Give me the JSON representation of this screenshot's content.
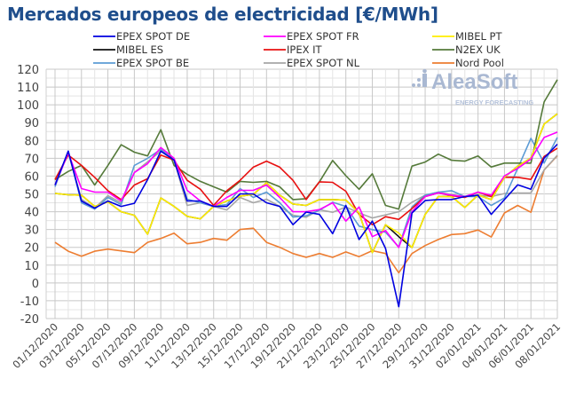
{
  "title": "Mercados europeos de electricidad [€/MWh]",
  "watermark": {
    "brand": "AleaSoft",
    "tagline": "ENERGY FORECASTING"
  },
  "chart_data": {
    "type": "line",
    "title": "Mercados europeos de electricidad [€/MWh]",
    "xlabel": "",
    "ylabel": "",
    "ylim": [
      -20,
      120
    ],
    "yticks": [
      -20,
      -10,
      0,
      10,
      20,
      30,
      40,
      50,
      60,
      70,
      80,
      90,
      100,
      110,
      120
    ],
    "grid": true,
    "legend_placement": "top",
    "x": [
      "01/12/2020",
      "02/12/2020",
      "03/12/2020",
      "04/12/2020",
      "05/12/2020",
      "06/12/2020",
      "07/12/2020",
      "08/12/2020",
      "09/12/2020",
      "10/12/2020",
      "11/12/2020",
      "12/12/2020",
      "13/12/2020",
      "14/12/2020",
      "15/12/2020",
      "16/12/2020",
      "17/12/2020",
      "18/12/2020",
      "19/12/2020",
      "20/12/2020",
      "21/12/2020",
      "22/12/2020",
      "23/12/2020",
      "24/12/2020",
      "25/12/2020",
      "26/12/2020",
      "27/12/2020",
      "28/12/2020",
      "29/12/2020",
      "30/12/2020",
      "31/12/2020",
      "01/01/2021",
      "02/01/2021",
      "03/01/2021",
      "04/01/2021",
      "05/01/2021",
      "06/01/2021",
      "07/01/2021",
      "08/01/2021"
    ],
    "xtick_labels": [
      "01/12/2020",
      "03/12/2020",
      "05/12/2020",
      "07/12/2020",
      "09/12/2020",
      "11/12/2020",
      "13/12/2020",
      "15/12/2020",
      "17/12/2020",
      "19/12/2020",
      "21/12/2020",
      "23/12/2020",
      "25/12/2020",
      "27/12/2020",
      "29/12/2020",
      "31/12/2020",
      "02/01/2021",
      "04/01/2021",
      "06/01/2021",
      "08/01/2021"
    ],
    "series": [
      {
        "name": "EPEX SPOT DE",
        "color": "#0000e0",
        "values": [
          55,
          74,
          46,
          42,
          46,
          43,
          44.7,
          58,
          74,
          69,
          46,
          46,
          43,
          43,
          50,
          50,
          45,
          43,
          32.7,
          39.8,
          38.5,
          27.7,
          43.5,
          24.4,
          34.7,
          19.4,
          -13.3,
          39.3,
          46.3,
          46.8,
          46.8,
          48.5,
          49.3,
          38.5,
          46.8,
          55.1,
          52.6,
          70.1,
          77.9
        ]
      },
      {
        "name": "EPEX SPOT FR",
        "color": "#ff00ff",
        "values": [
          55,
          73,
          53,
          51,
          51,
          46,
          62,
          67,
          76,
          70,
          52,
          46,
          43,
          48,
          52,
          52,
          55,
          48,
          40,
          40,
          41.2,
          45,
          34.7,
          42.7,
          26,
          29.4,
          19.9,
          40,
          48.5,
          50.6,
          49.3,
          48.5,
          51,
          49.3,
          60.1,
          64.3,
          69.6,
          81.7,
          84.7
        ]
      },
      {
        "name": "MIBEL PT",
        "color": "#ffee00",
        "values": [
          50.3,
          49.5,
          49.3,
          43,
          45.5,
          40,
          38,
          27.4,
          47.7,
          43,
          37.4,
          36,
          43,
          46,
          48.7,
          49.7,
          56.3,
          49.3,
          44.3,
          43.5,
          46.8,
          46.8,
          46.5,
          39.3,
          17,
          32.7,
          28,
          19.9,
          38.5,
          48.5,
          48.5,
          42.4,
          49.3,
          46.8,
          59.3,
          65.6,
          70.1,
          89.2,
          95
        ]
      },
      {
        "name": "MIBEL ES",
        "color": "#111111",
        "values": [
          50.3,
          49.5,
          49.3,
          43,
          45.5,
          40,
          38,
          27.4,
          47.7,
          43,
          37.4,
          36,
          43,
          46,
          48.7,
          49.7,
          56.3,
          49.3,
          44.3,
          43.5,
          46.8,
          46.8,
          46.5,
          39.3,
          17,
          32.7,
          26,
          19.9,
          38.5,
          48.5,
          48.5,
          42.4,
          49.3,
          46.8,
          59.3,
          65.6,
          70.1,
          89.2,
          95
        ]
      },
      {
        "name": "IPEX IT",
        "color": "#e81010",
        "values": [
          58,
          71.8,
          66,
          59.3,
          51.8,
          46.8,
          55,
          58.5,
          71.8,
          69,
          57.6,
          52.6,
          43.5,
          51.8,
          57.6,
          65,
          68.4,
          65,
          57.6,
          46.8,
          56.8,
          56.5,
          51.5,
          38.5,
          32.7,
          37.2,
          35.7,
          41.8,
          48.5,
          50.5,
          49,
          48,
          51,
          48.5,
          59.3,
          59.3,
          58.1,
          71,
          75.6
        ]
      },
      {
        "name": "N2EX UK",
        "color": "#557a3a",
        "values": [
          58,
          62.6,
          66,
          55,
          66,
          77.6,
          73.4,
          71.3,
          86,
          66,
          61,
          57,
          54,
          51,
          57,
          56.5,
          57,
          54,
          46.8,
          47.3,
          56.8,
          68.8,
          60.2,
          52.6,
          61.3,
          43.5,
          41.5,
          65.6,
          67.9,
          72.3,
          68.9,
          68.4,
          71.3,
          65.1,
          67.3,
          67.3,
          67.3,
          101.6,
          114.1
        ]
      },
      {
        "name": "EPEX SPOT BE",
        "color": "#5b9bd5",
        "values": [
          54,
          74,
          45,
          41.5,
          48,
          44,
          66,
          70,
          75,
          69,
          47,
          45,
          43,
          44,
          53,
          48,
          51,
          45,
          37,
          37.7,
          40.8,
          45.3,
          43,
          31.9,
          29.9,
          28.5,
          20.2,
          42.7,
          49.3,
          51,
          51.8,
          48.5,
          48.5,
          43.5,
          47.7,
          64.3,
          81.2,
          67.3,
          81.7
        ]
      },
      {
        "name": "EPEX SPOT NL",
        "color": "#a6a6a6",
        "values": [
          55,
          73,
          47,
          42,
          49,
          45,
          62,
          68,
          74,
          69,
          43.5,
          45,
          43,
          41,
          48,
          45,
          47,
          43,
          38,
          36.9,
          41.1,
          39.7,
          42.7,
          39.3,
          36.5,
          38.2,
          40,
          45.3,
          49.3,
          51,
          49.6,
          48.5,
          49.3,
          48.5,
          50.2,
          50.5,
          50.5,
          63.4,
          71.7
        ]
      },
      {
        "name": "Nord Pool",
        "color": "#ed7d31",
        "values": [
          22.8,
          17.8,
          15,
          17.8,
          19,
          18,
          17,
          22.8,
          25,
          28,
          22,
          22.8,
          25,
          24,
          30,
          30.7,
          22.8,
          20,
          16.5,
          14.4,
          16.5,
          14.4,
          17.4,
          14.8,
          18.1,
          16.5,
          5.7,
          16.5,
          21,
          24.4,
          27.2,
          27.7,
          29.7,
          25.8,
          39.3,
          43.5,
          39.7,
          63.4,
          71.4
        ]
      }
    ]
  }
}
